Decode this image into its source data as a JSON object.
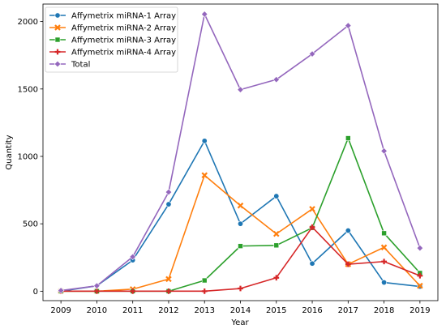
{
  "chart_data": {
    "type": "line",
    "xlabel": "Year",
    "ylabel": "Quantity",
    "x": [
      2009,
      2010,
      2011,
      2012,
      2013,
      2014,
      2015,
      2016,
      2017,
      2018,
      2019
    ],
    "ylim": [
      -70,
      2130
    ],
    "yticks": [
      0,
      500,
      1000,
      1500,
      2000
    ],
    "legend_position": "top-left",
    "grid": false,
    "series": [
      {
        "name": "Affymetrix miRNA-1 Array",
        "color": "#1f77b4",
        "marker": "circle",
        "values": [
          0,
          40,
          230,
          645,
          1115,
          500,
          705,
          205,
          450,
          65,
          35
        ]
      },
      {
        "name": "Affymetrix miRNA-2 Array",
        "color": "#ff7f0e",
        "marker": "x",
        "values": [
          0,
          0,
          15,
          90,
          860,
          635,
          425,
          610,
          200,
          325,
          40
        ]
      },
      {
        "name": "Affymetrix miRNA-3 Array",
        "color": "#2ca02c",
        "marker": "square",
        "values": [
          0,
          0,
          0,
          0,
          80,
          335,
          340,
          470,
          1135,
          430,
          135
        ]
      },
      {
        "name": "Affymetrix miRNA-4 Array",
        "color": "#d62728",
        "marker": "plus",
        "values": [
          0,
          0,
          0,
          0,
          0,
          20,
          100,
          475,
          200,
          220,
          115
        ]
      },
      {
        "name": "Total",
        "color": "#9467bd",
        "marker": "diamond",
        "values": [
          5,
          40,
          255,
          735,
          2055,
          1495,
          1570,
          1760,
          1970,
          1040,
          320
        ]
      }
    ]
  }
}
